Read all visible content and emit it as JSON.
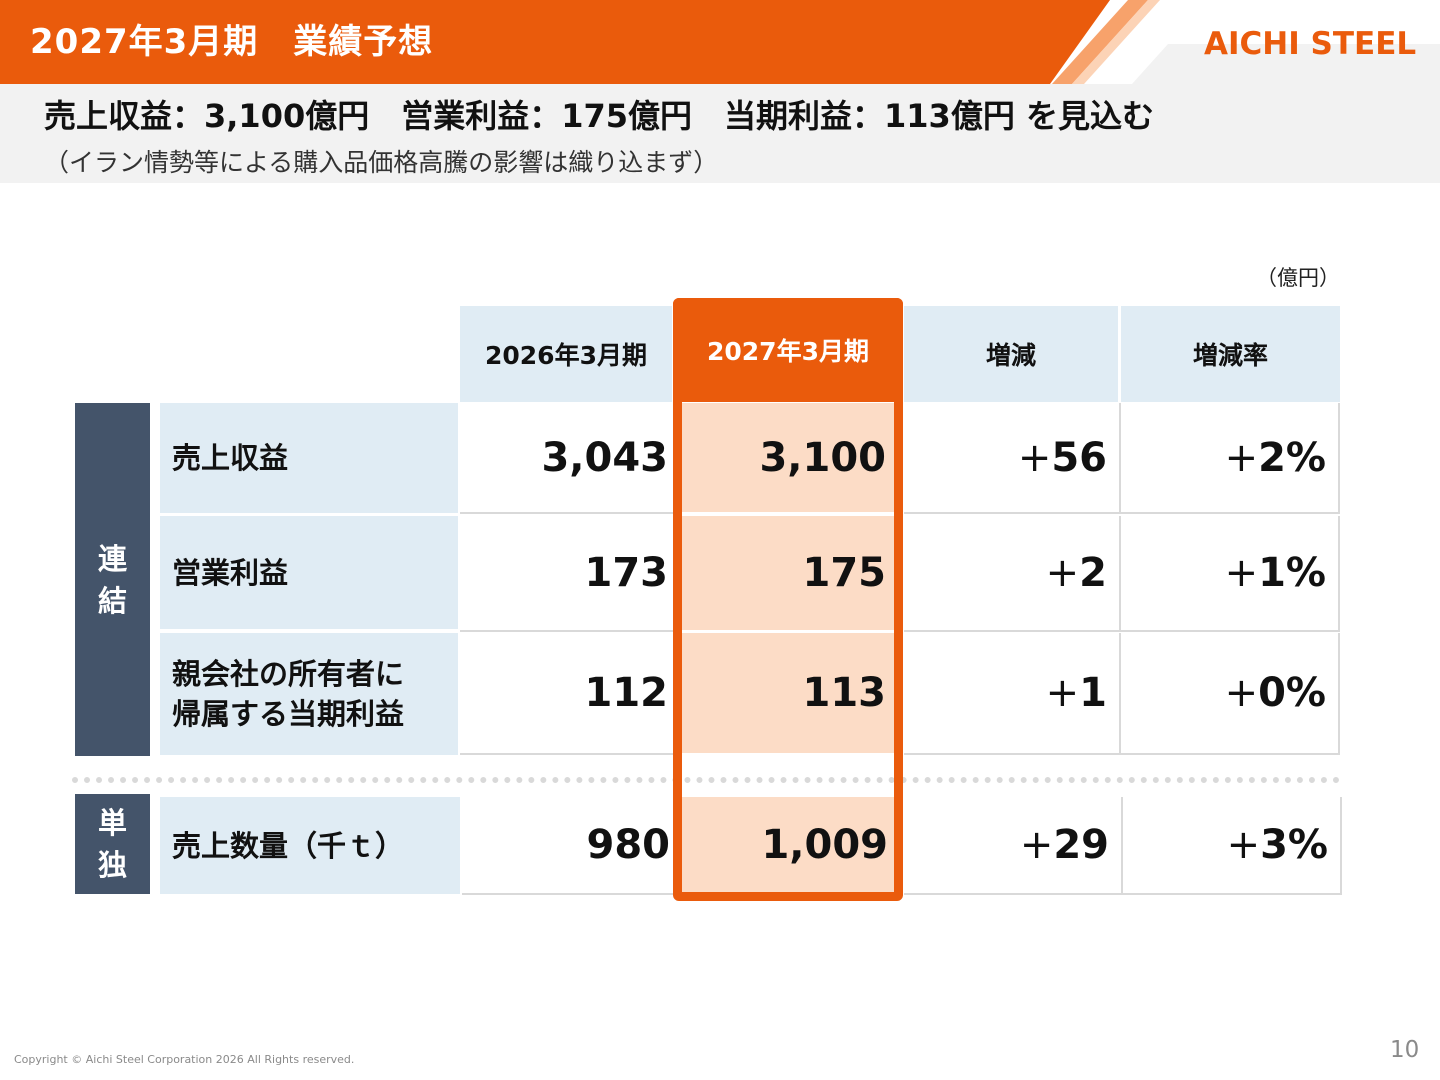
{
  "header": {
    "title": "2027年3月期　業績予想",
    "logo_text": "AICHI STEEL",
    "brand_color": "#ea5b0c"
  },
  "summary": {
    "headline": "売上収益：3,100億円　営業利益：175億円　当期利益：113億円 を見込む",
    "note": "（イラン情勢等による購入品価格高騰の影響は織り込まず）"
  },
  "table": {
    "unit": "（億円）",
    "columns": [
      "2026年3月期",
      "2027年3月期",
      "増減",
      "増減率"
    ],
    "groups": [
      {
        "label": "連\n結",
        "rows": [
          {
            "label": "売上収益",
            "fy2026": "3,043",
            "fy2027": "3,100",
            "delta_sign": "+",
            "delta": "56",
            "rate_sign": "+",
            "rate": "2%"
          },
          {
            "label": "営業利益",
            "fy2026": "173",
            "fy2027": "175",
            "delta_sign": "+",
            "delta": "2",
            "rate_sign": "+",
            "rate": "1%"
          },
          {
            "label": "親会社の所有者に",
            "label2": "帰属する当期利益",
            "fy2026": "112",
            "fy2027": "113",
            "delta_sign": "+",
            "delta": "1",
            "rate_sign": "+",
            "rate": "0%"
          }
        ]
      },
      {
        "label": "単\n独",
        "rows": [
          {
            "label": "売上数量（千ｔ）",
            "fy2026": "980",
            "fy2027": "1,009",
            "delta_sign": "+",
            "delta": "29",
            "rate_sign": "+",
            "rate": "3%"
          }
        ]
      }
    ],
    "highlight_color": "#fcdcc6",
    "group_color": "#44546a",
    "label_bg_color": "#e0ecf4"
  },
  "footer": {
    "copyright": "Copyright © Aichi Steel Corporation 2026 All Rights reserved.",
    "page_number": "10"
  }
}
